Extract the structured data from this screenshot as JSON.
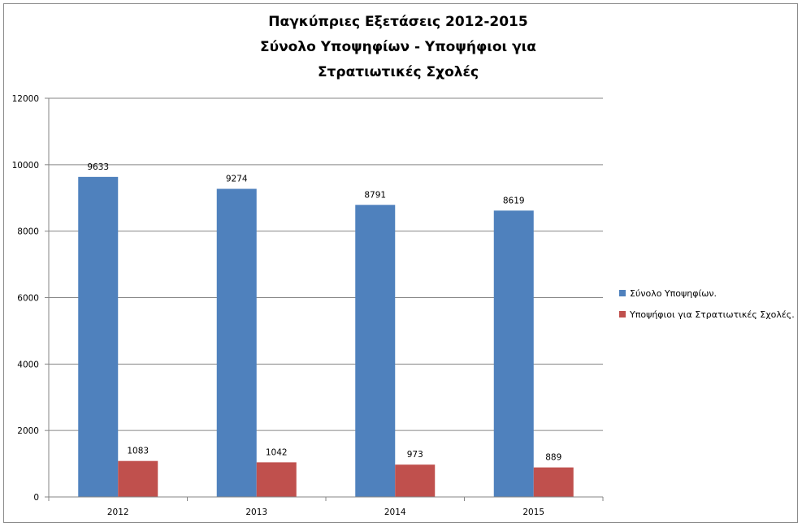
{
  "chart_data": {
    "type": "bar",
    "title_lines": [
      "Παγκύπριες Εξετάσεις 2012-2015",
      "Σύνολο Υποψηφίων - Υποψήφιοι για",
      "Στρατιωτικές Σχολές"
    ],
    "categories": [
      "2012",
      "2013",
      "2014",
      "2015"
    ],
    "series": [
      {
        "name": "Σύνολο Υποψηφίων.",
        "values": [
          9633,
          9274,
          8791,
          8619
        ],
        "color": "#4f81bd"
      },
      {
        "name": "Υποψήφιοι για Στρατιωτικές Σχολές.",
        "values": [
          1083,
          1042,
          973,
          889
        ],
        "color": "#c0504d"
      }
    ],
    "ylim": [
      0,
      12000
    ],
    "yticks": [
      0,
      2000,
      4000,
      6000,
      8000,
      10000,
      12000
    ],
    "grid": true,
    "legend_position": "right",
    "data_labels": true,
    "xlabel": "",
    "ylabel": ""
  }
}
